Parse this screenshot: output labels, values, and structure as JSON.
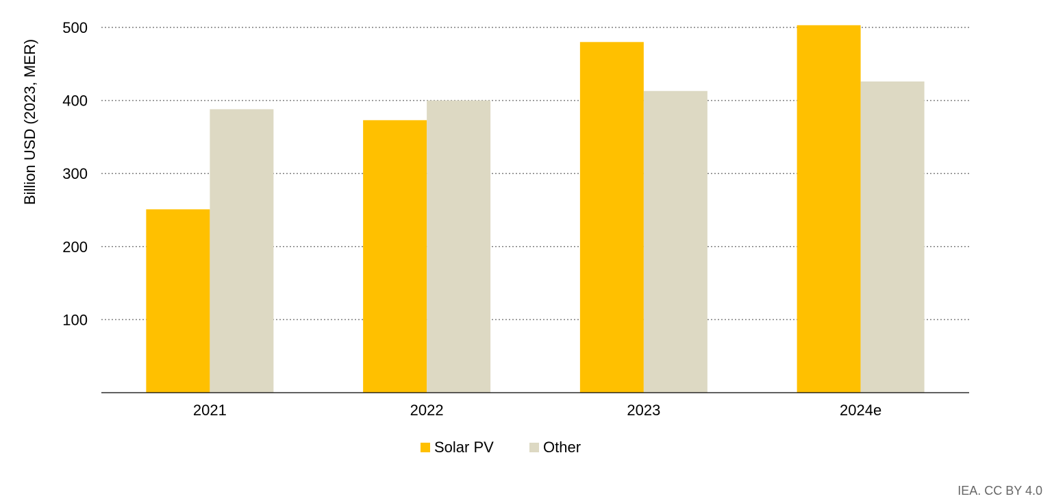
{
  "chart_data": {
    "type": "bar",
    "title": "",
    "xlabel": "",
    "ylabel": "Billion USD (2023, MER)",
    "ylim": [
      0,
      500
    ],
    "yticks": [
      100,
      200,
      300,
      400,
      500
    ],
    "grid": "dotted horizontal",
    "legend_position": "bottom-center",
    "categories": [
      "2021",
      "2022",
      "2023",
      "2024e"
    ],
    "series": [
      {
        "name": "Solar PV",
        "color": "#FFC000",
        "values": [
          251,
          373,
          480,
          503
        ]
      },
      {
        "name": "Other",
        "color": "#DDD9C3",
        "values": [
          388,
          400,
          413,
          426
        ]
      }
    ]
  },
  "footer": {
    "credit": "IEA. CC BY 4.0"
  }
}
